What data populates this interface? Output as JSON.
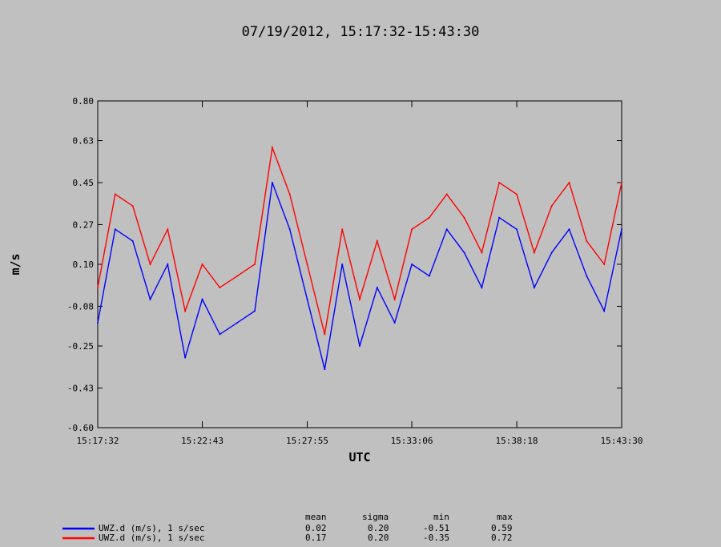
{
  "chart_data": {
    "type": "line",
    "title": "07/19/2012, 15:17:32-15:43:30",
    "xlabel": "UTC",
    "ylabel": "m/s",
    "xlim": [
      "15:17:32",
      "15:43:30"
    ],
    "ylim": [
      -0.6,
      0.8
    ],
    "yticks": [
      "0.80",
      "0.63",
      "0.45",
      "0.27",
      "0.10",
      "-0.08",
      "-0.25",
      "-0.43",
      "-0.60"
    ],
    "xticks": [
      "15:17:32",
      "15:22:43",
      "15:27:55",
      "15:33:06",
      "15:38:18",
      "15:43:30"
    ],
    "grid": false,
    "legend_position": "bottom-left",
    "x_sampled": [
      "15:17:32",
      "15:18:24",
      "15:19:16",
      "15:20:08",
      "15:21:00",
      "15:21:52",
      "15:22:43",
      "15:23:35",
      "15:24:27",
      "15:25:19",
      "15:26:11",
      "15:27:03",
      "15:27:55",
      "15:28:47",
      "15:29:39",
      "15:30:31",
      "15:31:23",
      "15:32:15",
      "15:33:06",
      "15:33:58",
      "15:34:50",
      "15:35:42",
      "15:36:34",
      "15:37:26",
      "15:38:18",
      "15:39:10",
      "15:40:02",
      "15:40:54",
      "15:41:46",
      "15:42:38",
      "15:43:30"
    ],
    "series": [
      {
        "name": "UWZ.d (m/s), 1 s/sec",
        "color": "#0000ff",
        "values": [
          -0.15,
          0.25,
          0.2,
          -0.05,
          0.1,
          -0.3,
          -0.05,
          -0.2,
          -0.15,
          -0.1,
          0.45,
          0.25,
          -0.05,
          -0.35,
          0.1,
          -0.25,
          0.0,
          -0.15,
          0.1,
          0.05,
          0.25,
          0.15,
          0.0,
          0.3,
          0.25,
          0.0,
          0.15,
          0.25,
          0.05,
          -0.1,
          0.25
        ],
        "mean": "0.02",
        "sigma": "0.20",
        "min": "-0.51",
        "max": "0.59"
      },
      {
        "name": "UWZ.d (m/s), 1 s/sec",
        "color": "#ff0000",
        "values": [
          0.0,
          0.4,
          0.35,
          0.1,
          0.25,
          -0.1,
          0.1,
          0.0,
          0.05,
          0.1,
          0.6,
          0.4,
          0.1,
          -0.2,
          0.25,
          -0.05,
          0.2,
          -0.05,
          0.25,
          0.3,
          0.4,
          0.3,
          0.15,
          0.45,
          0.4,
          0.15,
          0.35,
          0.45,
          0.2,
          0.1,
          0.45
        ],
        "mean": "0.17",
        "sigma": "0.20",
        "min": "-0.35",
        "max": "0.72"
      }
    ]
  },
  "stats": {
    "headers": [
      "mean",
      "sigma",
      "min",
      "max"
    ]
  }
}
